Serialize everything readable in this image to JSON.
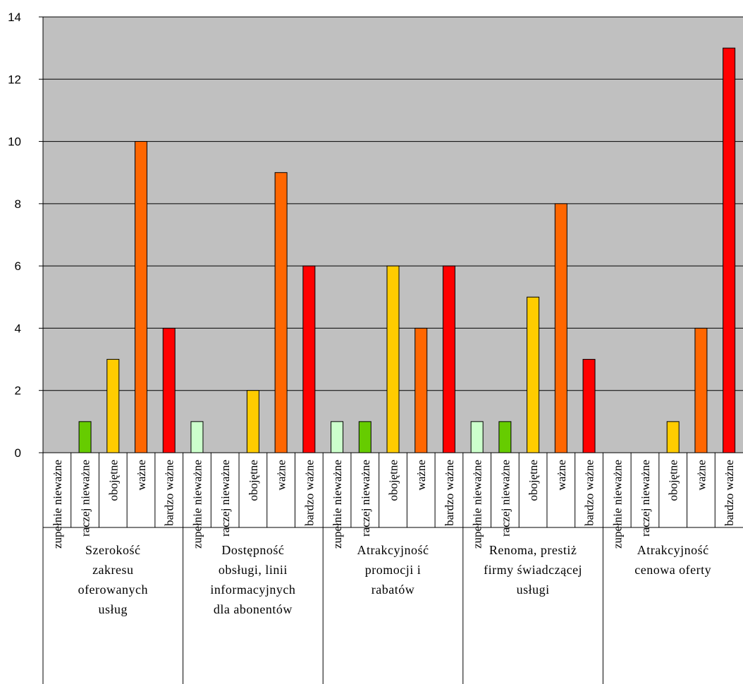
{
  "chart_data": {
    "type": "bar",
    "ylim": [
      0,
      14
    ],
    "yticks": [
      "0",
      "2",
      "4",
      "6",
      "8",
      "10",
      "12",
      "14"
    ],
    "grid": true,
    "plot_background": "#c0c0c0",
    "categories": [
      "zupełnie nieważne",
      "raczej nieważne",
      "obojętne",
      "ważne",
      "bardzo ważne"
    ],
    "category_colors": [
      "#ccffcc",
      "#66cc00",
      "#ffcc00",
      "#ff6600",
      "#ff0000"
    ],
    "groups": [
      {
        "label_lines": [
          "Szerokość",
          "zakresu",
          "oferowanych",
          "usług"
        ],
        "values": [
          0,
          1,
          3,
          10,
          4
        ]
      },
      {
        "label_lines": [
          "Dostępność",
          "obsługi, linii",
          "informacyjnych",
          "dla abonentów"
        ],
        "values": [
          1,
          0,
          2,
          9,
          6
        ]
      },
      {
        "label_lines": [
          "Atrakcyjność",
          "promocji i",
          "rabatów"
        ],
        "values": [
          1,
          1,
          6,
          4,
          6
        ]
      },
      {
        "label_lines": [
          "Renoma, prestiż",
          "firmy świadczącej",
          "usługi"
        ],
        "values": [
          1,
          1,
          5,
          8,
          3
        ]
      },
      {
        "label_lines": [
          "Atrakcyjność",
          "cenowa oferty"
        ],
        "values": [
          0,
          0,
          1,
          4,
          13
        ]
      }
    ]
  }
}
